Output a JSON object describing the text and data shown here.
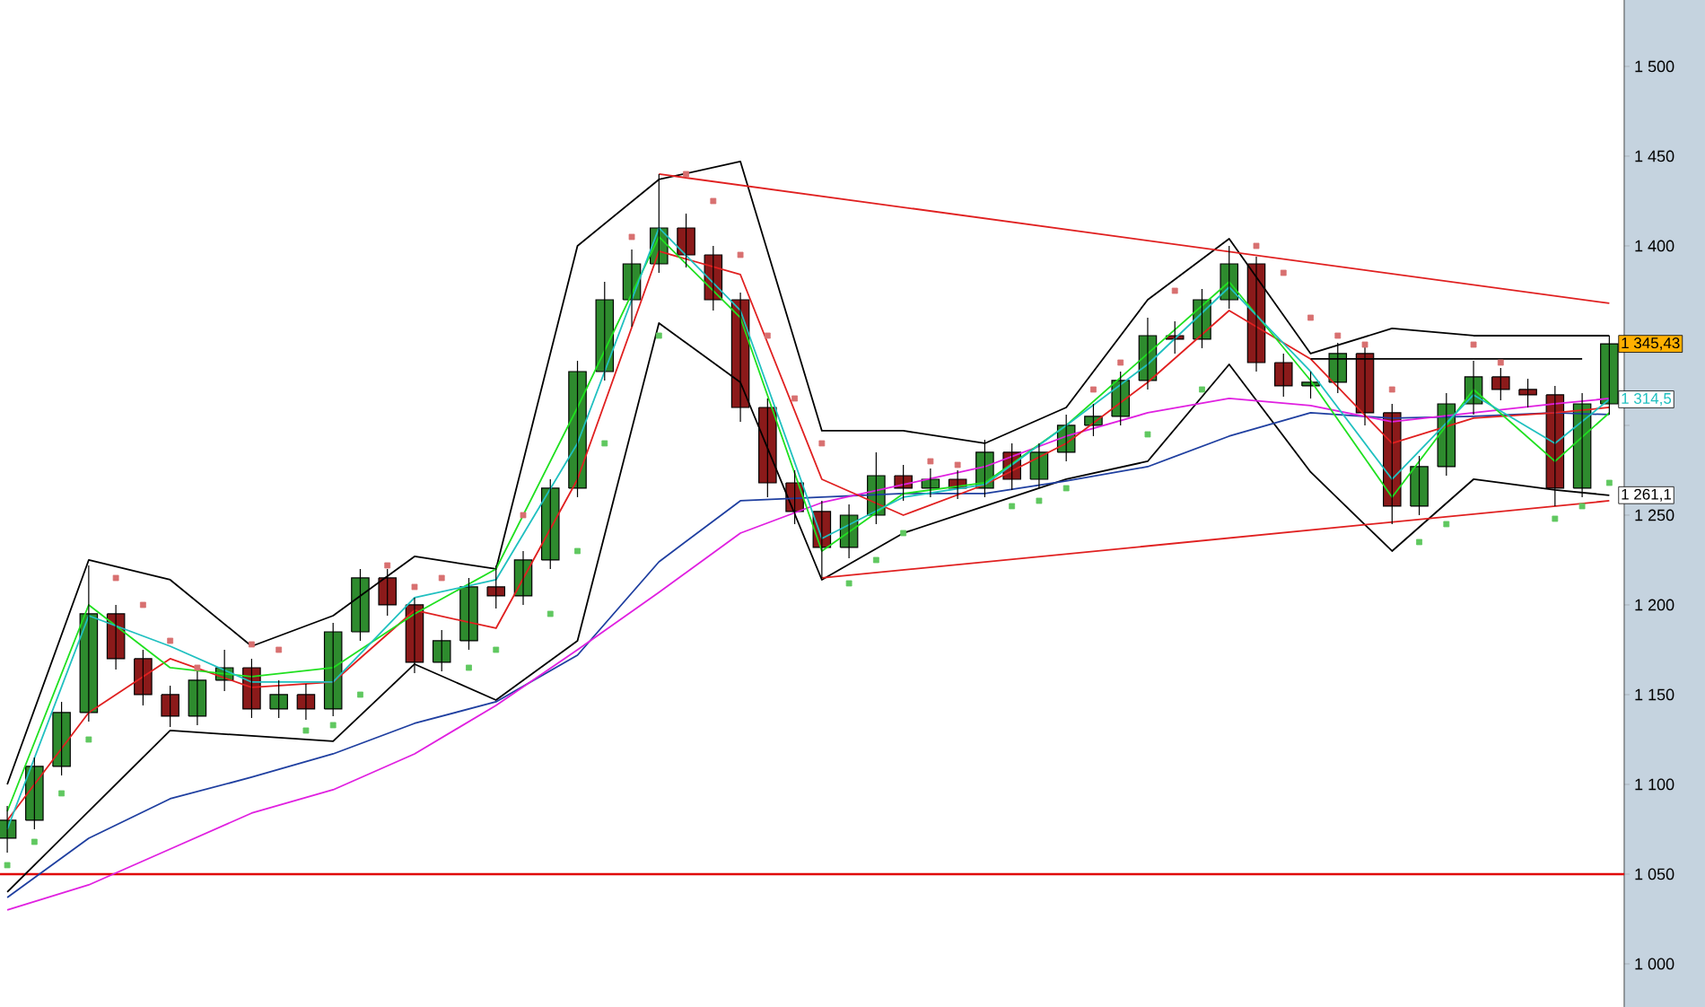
{
  "chart_data": {
    "type": "candlestick",
    "categories": [
      null,
      null,
      null,
      null,
      null,
      null,
      null,
      null,
      null,
      null,
      null,
      null,
      null,
      null,
      null,
      null,
      null,
      null,
      null,
      null,
      null,
      null,
      null,
      null,
      null,
      null,
      null,
      null,
      null,
      null,
      null,
      null,
      null,
      null,
      null,
      null,
      null,
      null,
      null,
      null,
      null,
      null,
      null,
      null,
      null,
      null,
      null,
      null,
      null,
      null,
      null,
      null,
      null,
      null,
      null,
      null,
      null,
      null,
      null,
      null
    ],
    "ohlc": [
      [
        1070,
        1088,
        1062,
        1080
      ],
      [
        1080,
        1115,
        1075,
        1110
      ],
      [
        1110,
        1146,
        1105,
        1140
      ],
      [
        1140,
        1222,
        1135,
        1195
      ],
      [
        1195,
        1200,
        1164,
        1170
      ],
      [
        1170,
        1175,
        1144,
        1150
      ],
      [
        1150,
        1155,
        1132,
        1138
      ],
      [
        1138,
        1163,
        1133,
        1158
      ],
      [
        1158,
        1175,
        1152,
        1165
      ],
      [
        1165,
        1170,
        1137,
        1142
      ],
      [
        1142,
        1158,
        1137,
        1150
      ],
      [
        1150,
        1156,
        1136,
        1142
      ],
      [
        1142,
        1190,
        1138,
        1185
      ],
      [
        1185,
        1220,
        1180,
        1215
      ],
      [
        1215,
        1220,
        1194,
        1200
      ],
      [
        1200,
        1204,
        1162,
        1168
      ],
      [
        1168,
        1186,
        1163,
        1180
      ],
      [
        1180,
        1215,
        1175,
        1210
      ],
      [
        1210,
        1222,
        1198,
        1205
      ],
      [
        1205,
        1230,
        1200,
        1225
      ],
      [
        1225,
        1270,
        1220,
        1265
      ],
      [
        1265,
        1336,
        1260,
        1330
      ],
      [
        1330,
        1380,
        1325,
        1370
      ],
      [
        1370,
        1398,
        1355,
        1390
      ],
      [
        1390,
        1440,
        1385,
        1410
      ],
      [
        1410,
        1418,
        1388,
        1395
      ],
      [
        1395,
        1400,
        1364,
        1370
      ],
      [
        1370,
        1374,
        1302,
        1310
      ],
      [
        1310,
        1315,
        1260,
        1268
      ],
      [
        1268,
        1275,
        1245,
        1252
      ],
      [
        1252,
        1258,
        1215,
        1232
      ],
      [
        1232,
        1256,
        1226,
        1250
      ],
      [
        1250,
        1285,
        1245,
        1272
      ],
      [
        1272,
        1278,
        1258,
        1265
      ],
      [
        1265,
        1276,
        1260,
        1270
      ],
      [
        1270,
        1275,
        1259,
        1265
      ],
      [
        1265,
        1292,
        1260,
        1285
      ],
      [
        1285,
        1290,
        1264,
        1270
      ],
      [
        1270,
        1290,
        1265,
        1285
      ],
      [
        1285,
        1306,
        1280,
        1300
      ],
      [
        1300,
        1312,
        1294,
        1305
      ],
      [
        1305,
        1330,
        1300,
        1325
      ],
      [
        1325,
        1360,
        1320,
        1350
      ],
      [
        1350,
        1358,
        1340,
        1348
      ],
      [
        1348,
        1376,
        1343,
        1370
      ],
      [
        1370,
        1400,
        1365,
        1390
      ],
      [
        1390,
        1394,
        1330,
        1335
      ],
      [
        1335,
        1340,
        1316,
        1322
      ],
      [
        1322,
        1330,
        1315,
        1324
      ],
      [
        1324,
        1346,
        1318,
        1340
      ],
      [
        1340,
        1344,
        1300,
        1307
      ],
      [
        1307,
        1312,
        1245,
        1255
      ],
      [
        1255,
        1283,
        1250,
        1277
      ],
      [
        1277,
        1318,
        1272,
        1312
      ],
      [
        1312,
        1336,
        1306,
        1327
      ],
      [
        1327,
        1332,
        1314,
        1320
      ],
      [
        1320,
        1326,
        1310,
        1317
      ],
      [
        1317,
        1322,
        1255,
        1265
      ],
      [
        1265,
        1318,
        1260,
        1312
      ],
      [
        1312,
        1350,
        1306,
        1345.43
      ]
    ],
    "colors": [
      "#2e8b2e",
      "#2e8b2e",
      "#2e8b2e",
      "#2e8b2e",
      "#8b1a1a",
      "#8b1a1a",
      "#8b1a1a",
      "#2e8b2e",
      "#2e8b2e",
      "#8b1a1a",
      "#2e8b2e",
      "#8b1a1a",
      "#2e8b2e",
      "#2e8b2e",
      "#8b1a1a",
      "#8b1a1a",
      "#2e8b2e",
      "#2e8b2e",
      "#8b1a1a",
      "#2e8b2e",
      "#2e8b2e",
      "#2e8b2e",
      "#2e8b2e",
      "#2e8b2e",
      "#2e8b2e",
      "#8b1a1a",
      "#8b1a1a",
      "#8b1a1a",
      "#8b1a1a",
      "#8b1a1a",
      "#8b1a1a",
      "#2e8b2e",
      "#2e8b2e",
      "#8b1a1a",
      "#2e8b2e",
      "#8b1a1a",
      "#2e8b2e",
      "#8b1a1a",
      "#2e8b2e",
      "#2e8b2e",
      "#2e8b2e",
      "#2e8b2e",
      "#2e8b2e",
      "#8b1a1a",
      "#2e8b2e",
      "#2e8b2e",
      "#8b1a1a",
      "#8b1a1a",
      "#2e8b2e",
      "#2e8b2e",
      "#8b1a1a",
      "#8b1a1a",
      "#2e8b2e",
      "#2e8b2e",
      "#2e8b2e",
      "#8b1a1a",
      "#8b1a1a",
      "#8b1a1a",
      "#2e8b2e",
      "#2e8b2e"
    ],
    "series": [
      {
        "type": "line",
        "color": "#000000",
        "values": [
          1100,
          null,
          null,
          1225,
          null,
          null,
          1214,
          null,
          null,
          1177,
          null,
          null,
          1194,
          null,
          null,
          1227,
          null,
          null,
          1220,
          null,
          null,
          1400,
          null,
          null,
          1437,
          null,
          null,
          1447,
          null,
          null,
          1297,
          null,
          null,
          1297,
          null,
          null,
          1290,
          null,
          null,
          1310,
          null,
          null,
          1370,
          null,
          null,
          1404,
          null,
          null,
          1340,
          null,
          null,
          1354,
          null,
          null,
          1350,
          null,
          null,
          1350,
          null,
          1350
        ]
      },
      {
        "type": "line",
        "color": "#000000",
        "values": [
          1040,
          null,
          null,
          1085,
          null,
          null,
          1130,
          null,
          null,
          1127,
          null,
          null,
          1124,
          null,
          null,
          1167,
          null,
          null,
          1147,
          null,
          null,
          1180,
          null,
          null,
          1357,
          null,
          null,
          1324,
          null,
          null,
          1214,
          null,
          null,
          1240,
          null,
          null,
          1255,
          null,
          null,
          1270,
          null,
          null,
          1280,
          null,
          null,
          1334,
          null,
          null,
          1274,
          null,
          null,
          1230,
          null,
          null,
          1270,
          null,
          null,
          1264,
          null,
          1261.1
        ],
        "value_labels": [
          null,
          null,
          null,
          null,
          null,
          null,
          null,
          null,
          null,
          null,
          null,
          null,
          null,
          null,
          null,
          null,
          null,
          null,
          null,
          null,
          null,
          null,
          null,
          null,
          null,
          null,
          null,
          null,
          null,
          null,
          null,
          null,
          null,
          null,
          null,
          null,
          null,
          null,
          null,
          null,
          null,
          null,
          null,
          null,
          null,
          null,
          null,
          null,
          null,
          null,
          null,
          null,
          null,
          null,
          null,
          null,
          null,
          null,
          null,
          "1 261,1"
        ]
      },
      {
        "type": "line",
        "color": "#1f3fa0",
        "values": [
          1037,
          null,
          null,
          1070,
          null,
          null,
          1092,
          null,
          null,
          1104,
          null,
          null,
          1117,
          null,
          null,
          1134,
          null,
          null,
          1146,
          null,
          null,
          1172,
          null,
          null,
          1224,
          null,
          null,
          1258,
          null,
          null,
          1260,
          null,
          null,
          1262,
          null,
          null,
          1262,
          null,
          null,
          1269,
          null,
          null,
          1277,
          null,
          null,
          1294,
          null,
          null,
          1307,
          null,
          null,
          1304,
          null,
          null,
          1305,
          null,
          null,
          1307,
          null,
          1306
        ]
      },
      {
        "type": "line",
        "color": "#e020e0",
        "values": [
          1030,
          null,
          null,
          1044,
          null,
          null,
          1064,
          null,
          null,
          1084,
          null,
          null,
          1097,
          null,
          null,
          1117,
          null,
          null,
          1144,
          null,
          null,
          1175,
          null,
          null,
          1207,
          null,
          null,
          1240,
          null,
          null,
          1257,
          null,
          null,
          1267,
          null,
          null,
          1277,
          null,
          null,
          1294,
          null,
          null,
          1307,
          null,
          null,
          1315,
          null,
          null,
          1311,
          null,
          null,
          1302,
          null,
          null,
          1307,
          null,
          null,
          1312,
          null,
          1315
        ]
      },
      {
        "type": "line",
        "color": "#e02020",
        "values": [
          1080,
          null,
          null,
          1140,
          null,
          null,
          1170,
          null,
          null,
          1154,
          null,
          null,
          1157,
          null,
          null,
          1197,
          null,
          null,
          1187,
          null,
          null,
          1270,
          null,
          null,
          1397,
          null,
          null,
          1384,
          null,
          null,
          1270,
          null,
          null,
          1250,
          null,
          null,
          1267,
          null,
          null,
          1290,
          null,
          null,
          1324,
          null,
          null,
          1364,
          null,
          null,
          1337,
          null,
          null,
          1290,
          null,
          null,
          1304,
          null,
          null,
          1307,
          null,
          1310
        ]
      },
      {
        "type": "line",
        "color": "#20e020",
        "values": [
          1085,
          null,
          null,
          1200,
          null,
          null,
          1165,
          null,
          null,
          1160,
          null,
          null,
          1165,
          null,
          null,
          1195,
          null,
          null,
          1220,
          null,
          null,
          1310,
          null,
          null,
          1405,
          null,
          null,
          1360,
          null,
          null,
          1230,
          null,
          null,
          1262,
          null,
          null,
          1268,
          null,
          null,
          1300,
          null,
          null,
          1340,
          null,
          null,
          1380,
          null,
          null,
          1325,
          null,
          null,
          1260,
          null,
          null,
          1320,
          null,
          null,
          1280,
          null,
          1307
        ]
      },
      {
        "type": "line",
        "color": "#20c0c0",
        "values": [
          1075,
          null,
          null,
          1194,
          null,
          null,
          1177,
          null,
          null,
          1157,
          null,
          null,
          1157,
          null,
          null,
          1204,
          null,
          null,
          1214,
          null,
          null,
          1290,
          null,
          null,
          1410,
          null,
          null,
          1364,
          null,
          null,
          1237,
          null,
          null,
          1260,
          null,
          null,
          1267,
          null,
          null,
          1300,
          null,
          null,
          1334,
          null,
          null,
          1377,
          null,
          null,
          1330,
          null,
          null,
          1270,
          null,
          null,
          1317,
          null,
          null,
          1290,
          null,
          1314.5
        ],
        "value_labels": [
          null,
          null,
          null,
          null,
          null,
          null,
          null,
          null,
          null,
          null,
          null,
          null,
          null,
          null,
          null,
          null,
          null,
          null,
          null,
          null,
          null,
          null,
          null,
          null,
          null,
          null,
          null,
          null,
          null,
          null,
          null,
          null,
          null,
          null,
          null,
          null,
          null,
          null,
          null,
          null,
          null,
          null,
          null,
          null,
          null,
          null,
          null,
          null,
          null,
          null,
          null,
          null,
          null,
          null,
          null,
          null,
          null,
          null,
          null,
          "1 314,5"
        ]
      },
      {
        "type": "line",
        "color": "#e02020",
        "values": [
          null,
          null,
          null,
          null,
          null,
          null,
          null,
          null,
          null,
          null,
          null,
          null,
          null,
          null,
          null,
          null,
          null,
          null,
          null,
          null,
          null,
          null,
          null,
          null,
          1440,
          null,
          null,
          null,
          null,
          null,
          null,
          null,
          null,
          null,
          null,
          null,
          null,
          null,
          null,
          null,
          null,
          null,
          null,
          null,
          null,
          null,
          null,
          null,
          null,
          null,
          null,
          null,
          null,
          null,
          null,
          null,
          null,
          null,
          null,
          1368
        ]
      },
      {
        "type": "line",
        "color": "#e02020",
        "values": [
          null,
          null,
          null,
          null,
          null,
          null,
          null,
          null,
          null,
          null,
          null,
          null,
          null,
          null,
          null,
          null,
          null,
          null,
          null,
          null,
          null,
          null,
          null,
          null,
          null,
          null,
          null,
          null,
          null,
          null,
          1215,
          null,
          null,
          null,
          null,
          null,
          null,
          null,
          null,
          null,
          null,
          null,
          null,
          null,
          null,
          null,
          null,
          null,
          null,
          null,
          null,
          null,
          null,
          null,
          null,
          null,
          null,
          null,
          null,
          1258
        ]
      },
      {
        "type": "line",
        "color": "#000000",
        "values": [
          null,
          null,
          null,
          null,
          null,
          null,
          null,
          null,
          null,
          null,
          null,
          null,
          null,
          null,
          null,
          null,
          null,
          null,
          null,
          null,
          null,
          null,
          null,
          null,
          null,
          null,
          null,
          null,
          null,
          null,
          null,
          null,
          null,
          null,
          null,
          null,
          null,
          null,
          null,
          null,
          null,
          null,
          null,
          null,
          null,
          null,
          null,
          null,
          1337,
          null,
          null,
          null,
          null,
          null,
          null,
          null,
          null,
          null,
          1337,
          null
        ]
      },
      {
        "type": "scatter",
        "marker": "square",
        "color": "#d87070",
        "values": [
          null,
          null,
          null,
          null,
          1215,
          1200,
          1180,
          1165,
          null,
          1178,
          1175,
          null,
          null,
          null,
          1222,
          1210,
          1215,
          null,
          null,
          1250,
          null,
          null,
          null,
          1405,
          null,
          1440,
          1425,
          1395,
          1350,
          1315,
          1290,
          null,
          null,
          null,
          1280,
          1278,
          null,
          null,
          null,
          null,
          1320,
          1335,
          null,
          1375,
          null,
          null,
          1400,
          1385,
          1360,
          1350,
          1345,
          1320,
          null,
          null,
          1345,
          1335,
          null,
          null,
          null,
          null
        ]
      },
      {
        "type": "scatter",
        "marker": "square",
        "color": "#60c860",
        "values": [
          1055,
          1068,
          1095,
          1125,
          null,
          null,
          null,
          null,
          null,
          null,
          null,
          1130,
          1133,
          1150,
          null,
          null,
          null,
          1165,
          1175,
          null,
          1195,
          1230,
          1290,
          null,
          1350,
          null,
          null,
          null,
          null,
          null,
          null,
          1212,
          1225,
          1240,
          null,
          null,
          null,
          1255,
          1258,
          1265,
          null,
          null,
          1295,
          null,
          1320,
          null,
          null,
          null,
          null,
          null,
          null,
          null,
          1235,
          1245,
          null,
          null,
          null,
          1248,
          1255,
          1268
        ]
      }
    ],
    "ylim": [
      976,
      1537
    ],
    "yticks": [
      {
        "value": 1000,
        "label": "1 000"
      },
      {
        "value": 1050,
        "label": "1 050"
      },
      {
        "value": 1100,
        "label": "1 100"
      },
      {
        "value": 1150,
        "label": "1 150"
      },
      {
        "value": 1200,
        "label": "1 200"
      },
      {
        "value": 1250,
        "label": "1 250"
      },
      {
        "value": 1300,
        "label": null
      },
      {
        "value": 1350,
        "label": null
      },
      {
        "value": 1400,
        "label": "1 400"
      },
      {
        "value": 1450,
        "label": "1 450"
      },
      {
        "value": 1500,
        "label": "1 500"
      }
    ],
    "tick_labels": "y",
    "ref_lines": [
      {
        "axis": "y",
        "value": 1050,
        "color": "#e00000"
      }
    ],
    "value_labels": [
      null,
      null,
      null,
      null,
      null,
      null,
      null,
      null,
      null,
      null,
      null,
      null,
      null,
      null,
      null,
      null,
      null,
      null,
      null,
      null,
      null,
      null,
      null,
      null,
      null,
      null,
      null,
      null,
      null,
      null,
      null,
      null,
      null,
      null,
      null,
      null,
      null,
      null,
      null,
      null,
      null,
      null,
      null,
      null,
      null,
      null,
      null,
      null,
      null,
      null,
      null,
      null,
      null,
      null,
      null,
      null,
      null,
      null,
      null,
      "1 345,43"
    ]
  }
}
